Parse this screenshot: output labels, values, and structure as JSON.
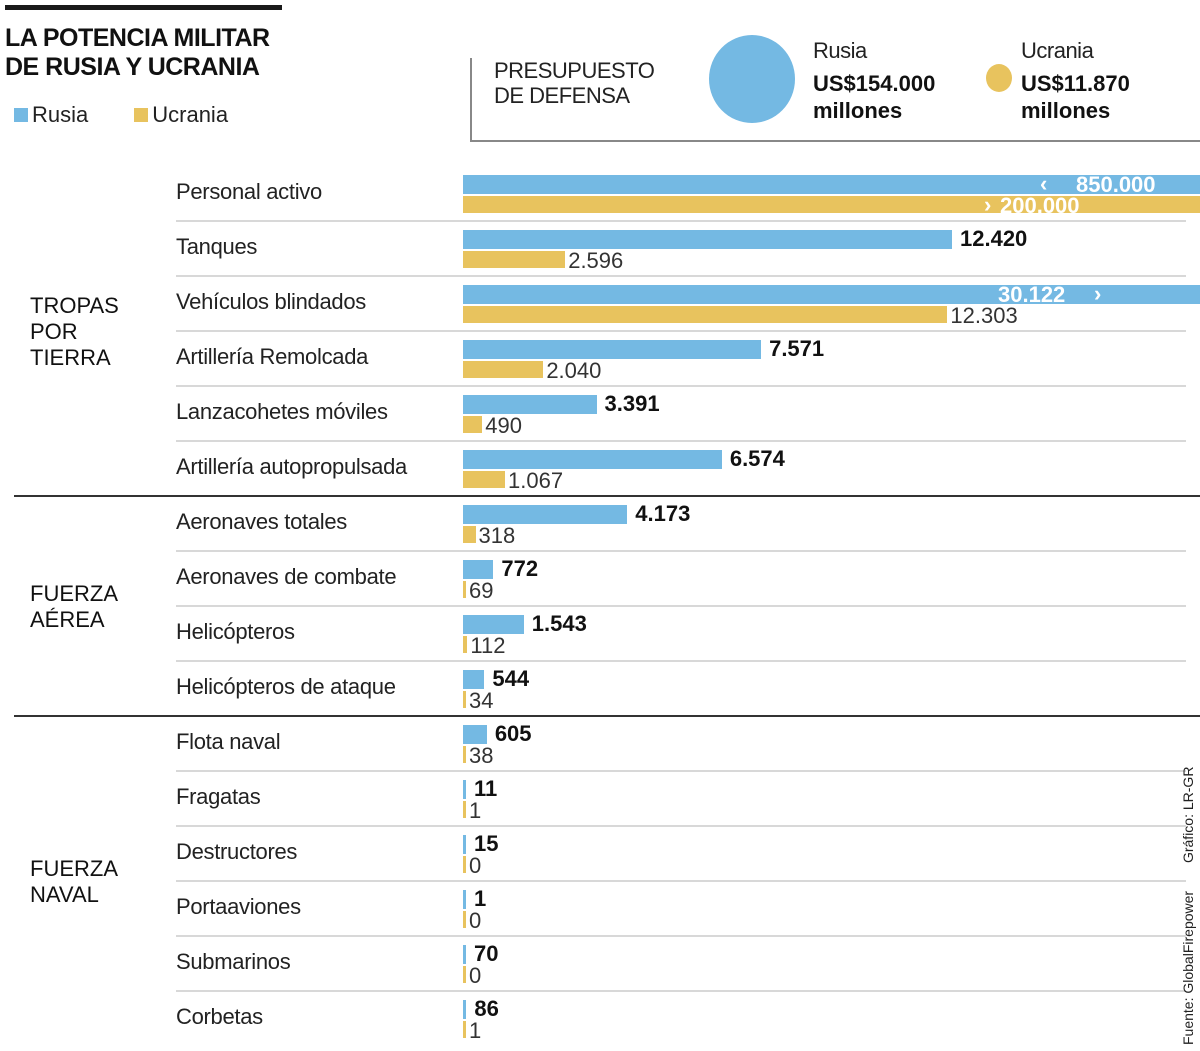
{
  "title_lines": [
    "LA POTENCIA MILITAR",
    "DE RUSIA Y UCRANIA"
  ],
  "legend": [
    {
      "name": "Rusia",
      "color": "#74b9e3"
    },
    {
      "name": "Ucrania",
      "color": "#e8c35e"
    }
  ],
  "budget": {
    "label_lines": [
      "PRESUPUESTO",
      "DE DEFENSA"
    ],
    "russia": {
      "name": "Rusia",
      "value_line1": "US$154.000",
      "value_line2": "millones",
      "value_musd": 154000
    },
    "ukraine": {
      "name": "Ucrania",
      "value_line1": "US$11.870",
      "value_line2": "millones",
      "value_musd": 11870
    }
  },
  "chart_data": {
    "type": "bar",
    "orientation": "horizontal",
    "title": "LA POTENCIA MILITAR DE RUSIA Y UCRANIA",
    "legend_position": "top-left",
    "series": [
      {
        "name": "Rusia",
        "color": "#74b9e3"
      },
      {
        "name": "Ucrania",
        "color": "#e8c35e"
      }
    ],
    "broken_axis_note": "Personal activo and Vehículos blindados bars are truncated",
    "groups": [
      {
        "label_lines": [
          "TROPAS",
          "POR",
          "TIERRA"
        ],
        "rows": [
          {
            "category": "Personal activo",
            "rusia": 850000,
            "ucrania": 200000,
            "rusia_label": "850.000",
            "ucrania_label": "200.000",
            "rusia_truncated": true,
            "ucrania_truncated": true
          },
          {
            "category": "Tanques",
            "rusia": 12420,
            "ucrania": 2596,
            "rusia_label": "12.420",
            "ucrania_label": "2.596"
          },
          {
            "category": "Vehículos blindados",
            "rusia": 30122,
            "ucrania": 12303,
            "rusia_label": "30.122",
            "ucrania_label": "12.303",
            "rusia_truncated": true
          },
          {
            "category": "Artillería Remolcada",
            "rusia": 7571,
            "ucrania": 2040,
            "rusia_label": "7.571",
            "ucrania_label": "2.040"
          },
          {
            "category": "Lanzacohetes móviles",
            "rusia": 3391,
            "ucrania": 490,
            "rusia_label": "3.391",
            "ucrania_label": "490"
          },
          {
            "category": "Artillería autopropulsada",
            "rusia": 6574,
            "ucrania": 1067,
            "rusia_label": "6.574",
            "ucrania_label": "1.067"
          }
        ]
      },
      {
        "label_lines": [
          "FUERZA",
          "AÉREA"
        ],
        "rows": [
          {
            "category": "Aeronaves totales",
            "rusia": 4173,
            "ucrania": 318,
            "rusia_label": "4.173",
            "ucrania_label": "318"
          },
          {
            "category": "Aeronaves de combate",
            "rusia": 772,
            "ucrania": 69,
            "rusia_label": "772",
            "ucrania_label": "69"
          },
          {
            "category": "Helicópteros",
            "rusia": 1543,
            "ucrania": 112,
            "rusia_label": "1.543",
            "ucrania_label": "112"
          },
          {
            "category": "Helicópteros de ataque",
            "rusia": 544,
            "ucrania": 34,
            "rusia_label": "544",
            "ucrania_label": "34"
          }
        ]
      },
      {
        "label_lines": [
          "FUERZA",
          "NAVAL"
        ],
        "rows": [
          {
            "category": "Flota naval",
            "rusia": 605,
            "ucrania": 38,
            "rusia_label": "605",
            "ucrania_label": "38"
          },
          {
            "category": "Fragatas",
            "rusia": 11,
            "ucrania": 1,
            "rusia_label": "11",
            "ucrania_label": "1"
          },
          {
            "category": "Destructores",
            "rusia": 15,
            "ucrania": 0,
            "rusia_label": "15",
            "ucrania_label": "0"
          },
          {
            "category": "Portaaviones",
            "rusia": 1,
            "ucrania": 0,
            "rusia_label": "1",
            "ucrania_label": "0"
          },
          {
            "category": "Submarinos",
            "rusia": 70,
            "ucrania": 0,
            "rusia_label": "70",
            "ucrania_label": "0"
          },
          {
            "category": "Corbetas",
            "rusia": 86,
            "ucrania": 1,
            "rusia_label": "86",
            "ucrania_label": "1"
          }
        ]
      }
    ]
  },
  "credits": {
    "source": "Fuente: GlobalFirepower",
    "graphic": "Gráfico: LR-GR"
  }
}
